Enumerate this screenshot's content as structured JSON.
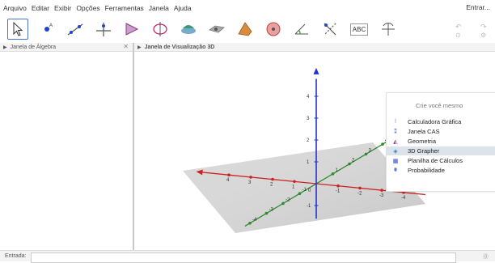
{
  "menu": {
    "items": [
      "Arquivo",
      "Editar",
      "Exibir",
      "Opções",
      "Ferramentas",
      "Janela",
      "Ajuda"
    ],
    "login_label": "Entrar..."
  },
  "toolbar": {
    "tools": [
      "move-tool",
      "point-tool",
      "line-tool",
      "perpendicular-tool",
      "polygon-tool",
      "circle-tool",
      "intersect-planes-tool",
      "plane-tool",
      "pyramid-tool",
      "sphere-tool",
      "angle-tool",
      "reflect-tool",
      "text-tool",
      "rotate-view-tool"
    ],
    "text_tool_label": "ABC",
    "undo_icon": "undo-icon",
    "redo_icon": "redo-icon"
  },
  "panels": {
    "algebra_title": "Janela de Álgebra",
    "graphics_title": "Janela de Visualização 3D"
  },
  "axes3d": {
    "z_ticks": [
      "4",
      "3",
      "2",
      "1",
      "-1"
    ],
    "x_ticks": [
      "-4",
      "-3",
      "-2",
      "-1",
      "1",
      "2",
      "3",
      "4"
    ],
    "y_ticks": [
      "-4",
      "-3",
      "-2",
      "-1",
      "1",
      "2",
      "3",
      "4"
    ],
    "origin_label": "0",
    "colors": {
      "x": "#cc2222",
      "y": "#2e8b2e",
      "z": "#2233cc",
      "plane": "#b0b0b0"
    }
  },
  "perspectives": {
    "title": "Crie você mesmo",
    "items": [
      {
        "label": "Calculadora Gráfica",
        "icon": "graphing-icon",
        "active": false
      },
      {
        "label": "Janela CAS",
        "icon": "cas-icon",
        "active": false
      },
      {
        "label": "Geometria",
        "icon": "geometry-icon",
        "active": false
      },
      {
        "label": "3D Grapher",
        "icon": "3d-graphics-icon",
        "active": true
      },
      {
        "label": "Planilha de Cálculos",
        "icon": "spreadsheet-icon",
        "active": false
      },
      {
        "label": "Probabilidade",
        "icon": "probability-icon",
        "active": false
      }
    ]
  },
  "inputbar": {
    "label": "Entrada:",
    "value": ""
  }
}
